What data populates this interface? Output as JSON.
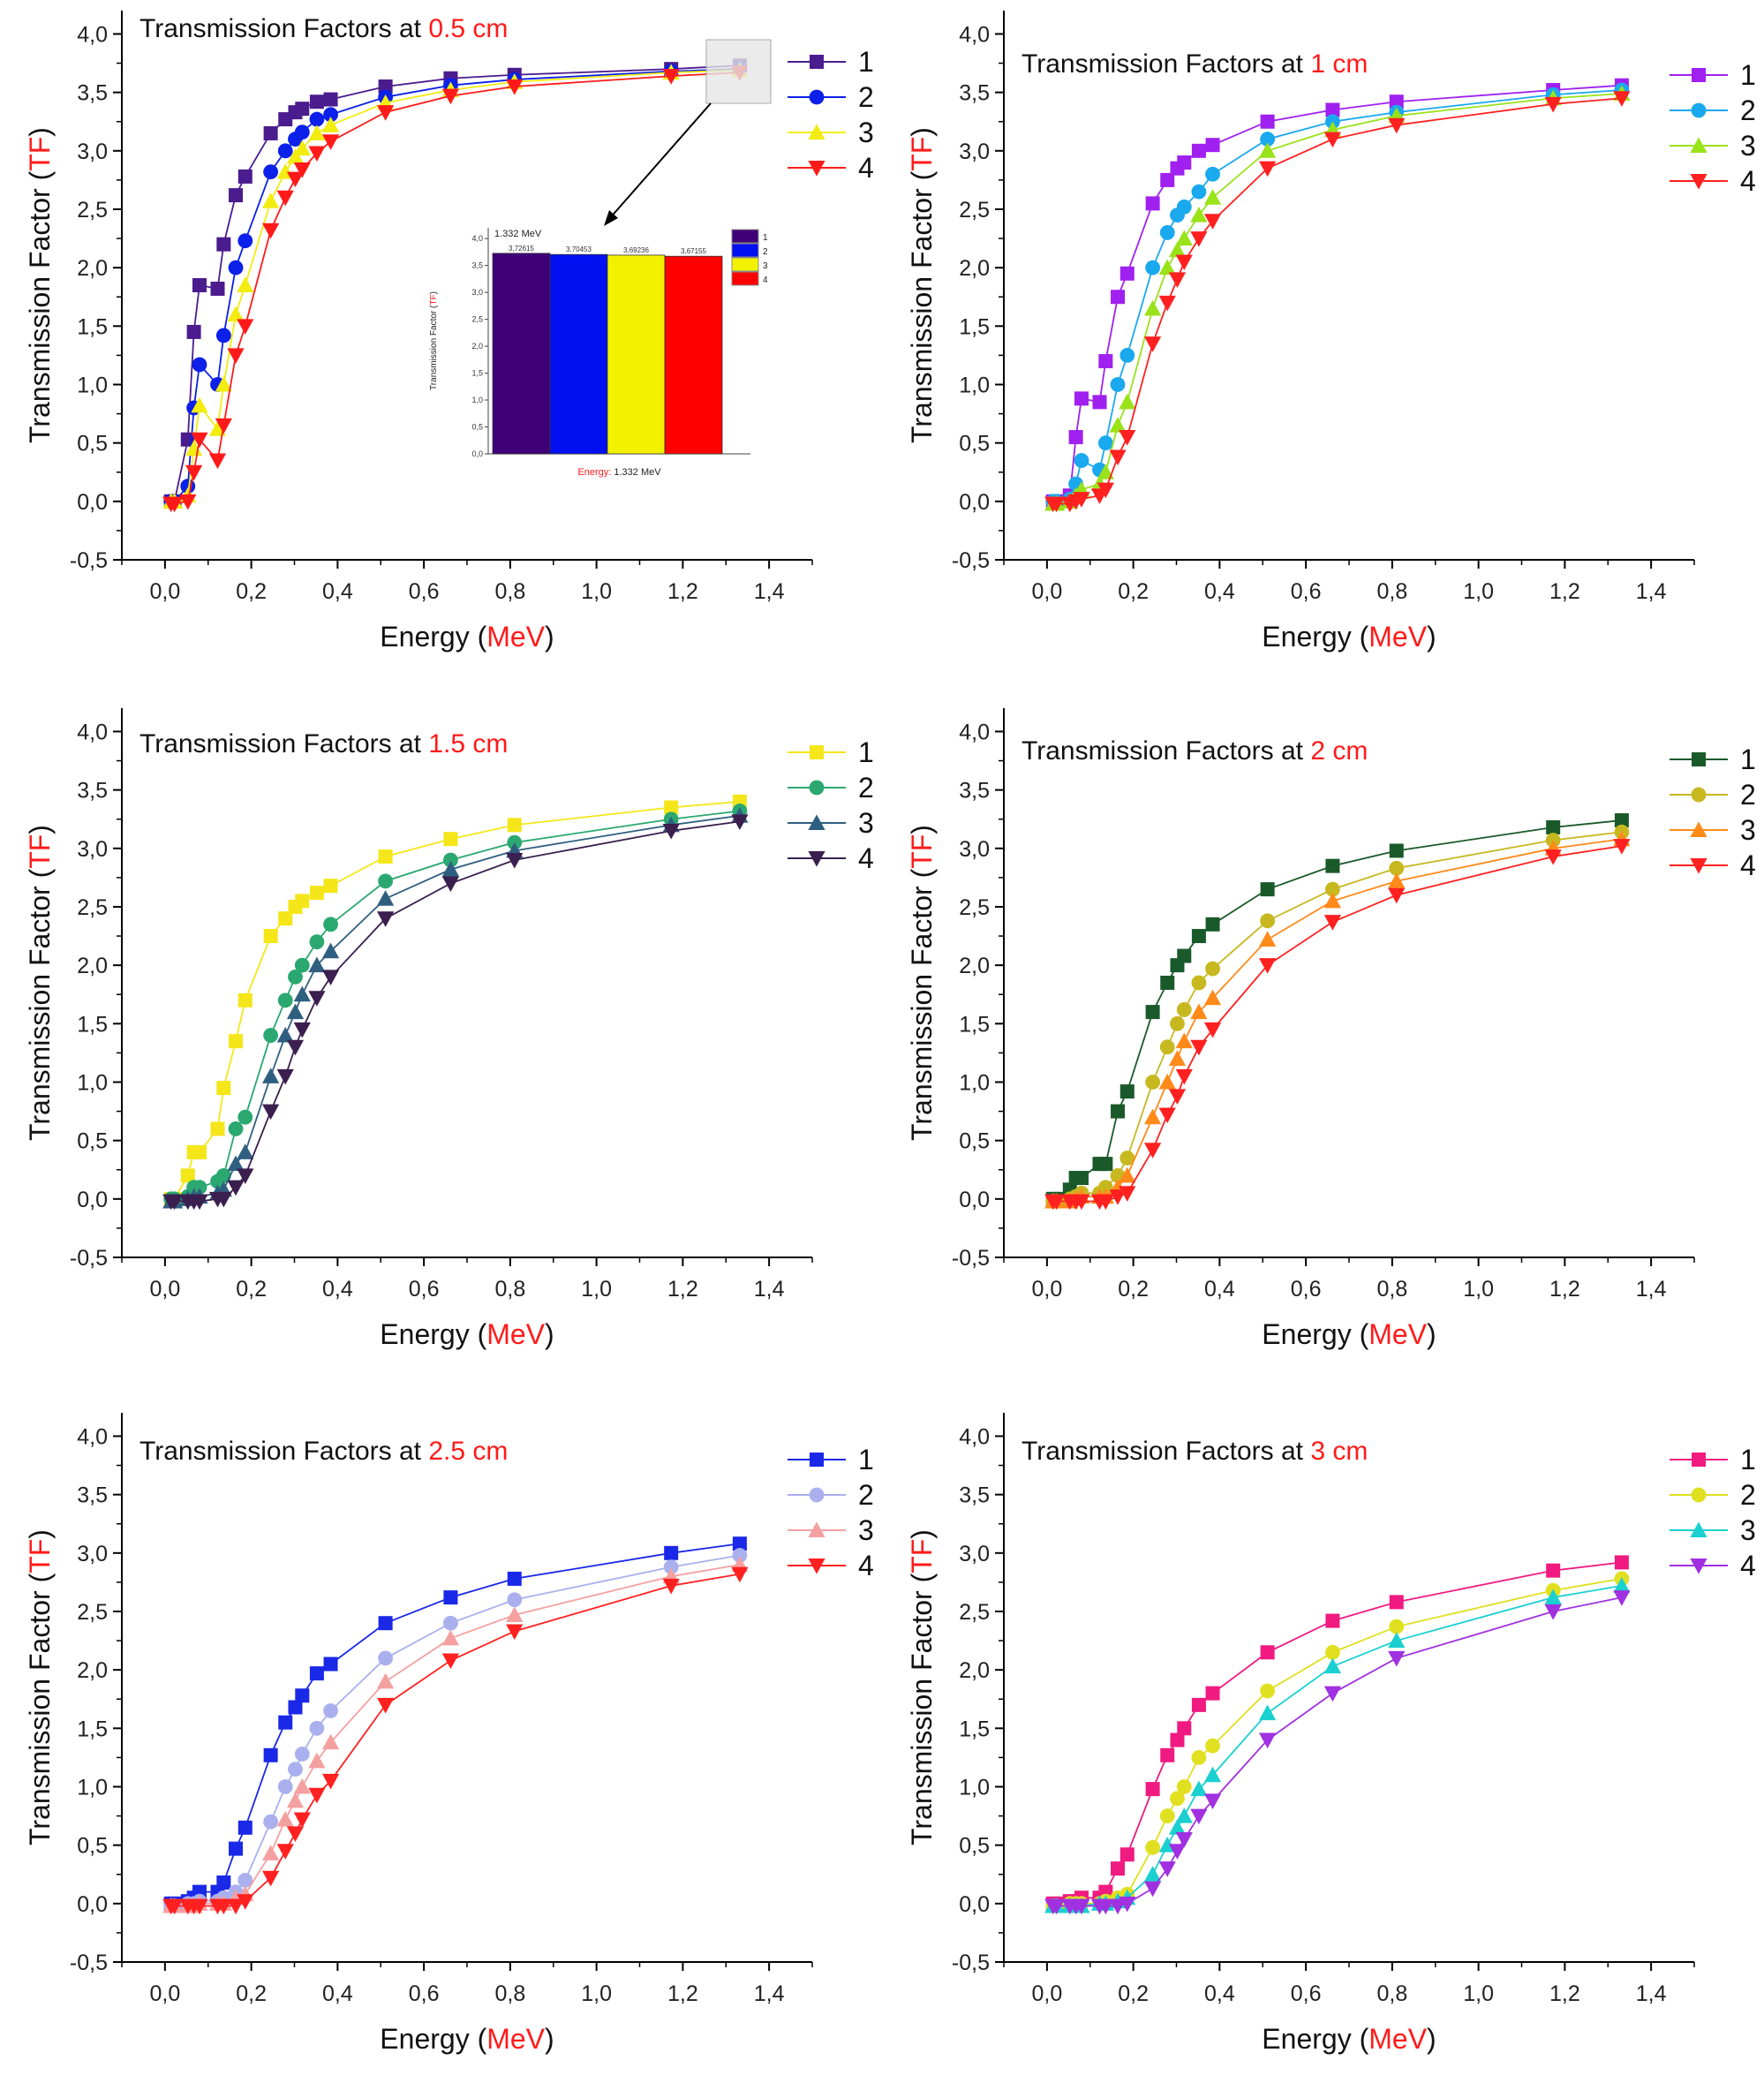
{
  "chart_data": [
    {
      "type": "line",
      "title_prefix": "Transmission Factors at ",
      "title_highlight": "0.5 cm",
      "colors": [
        "#4b1c8e",
        "#0b20e8",
        "#f2ec10",
        "#ff1a1a"
      ],
      "markers": [
        "square",
        "circle",
        "triangle-up",
        "triangle-down"
      ],
      "series": [
        {
          "name": "1",
          "values": [
            0,
            0,
            0.53,
            1.45,
            1.85,
            1.82,
            2.2,
            2.62,
            2.78,
            3.15,
            3.27,
            3.33,
            3.36,
            3.42,
            3.44,
            3.55,
            3.62,
            3.65,
            3.7,
            3.73
          ]
        },
        {
          "name": "2",
          "values": [
            0,
            0,
            0.13,
            0.8,
            1.17,
            1.0,
            1.42,
            2.0,
            2.23,
            2.82,
            3.0,
            3.1,
            3.16,
            3.27,
            3.31,
            3.46,
            3.56,
            3.61,
            3.68,
            3.7
          ]
        },
        {
          "name": "3",
          "values": [
            0,
            0,
            0.05,
            0.45,
            0.82,
            0.62,
            1.0,
            1.6,
            1.85,
            2.57,
            2.82,
            2.95,
            3.02,
            3.15,
            3.22,
            3.41,
            3.52,
            3.59,
            3.67,
            3.69
          ]
        },
        {
          "name": "4",
          "values": [
            -0.02,
            -0.02,
            0,
            0.25,
            0.53,
            0.35,
            0.65,
            1.25,
            1.5,
            2.32,
            2.6,
            2.76,
            2.84,
            2.98,
            3.08,
            3.33,
            3.47,
            3.55,
            3.64,
            3.67
          ]
        }
      ],
      "inset": {
        "type": "bar",
        "title": "1.332 MeV",
        "categories": [
          "1",
          "2",
          "3",
          "4"
        ],
        "values": [
          3.72615,
          3.70453,
          3.69236,
          3.67155
        ],
        "labels": [
          "3,72615",
          "3,70453",
          "3,69236",
          "3,67155"
        ],
        "colors": [
          "#3f0077",
          "#0010f0",
          "#f2f200",
          "#ff0000"
        ],
        "ylabel_prefix": "Transmission Factor (",
        "ylabel_highlight": "TF",
        "ylabel_suffix": ")",
        "xlabel_prefix": "Energy:",
        "xlabel_suffix": " 1.332 MeV",
        "yticks": [
          "0,0",
          "0,5",
          "1,0",
          "1,5",
          "2,0",
          "2,5",
          "3,0",
          "3,5",
          "4,0"
        ],
        "ylim": [
          0,
          4.2
        ]
      }
    },
    {
      "type": "line",
      "title_prefix": "Transmission Factors at ",
      "title_highlight": "1 cm",
      "colors": [
        "#a020f0",
        "#1aa8ee",
        "#9ae21a",
        "#ff2020"
      ],
      "markers": [
        "square",
        "circle",
        "triangle-up",
        "triangle-down"
      ],
      "series": [
        {
          "name": "1",
          "values": [
            0,
            0,
            0.05,
            0.55,
            0.88,
            0.85,
            1.2,
            1.75,
            1.95,
            2.55,
            2.75,
            2.85,
            2.9,
            3.0,
            3.05,
            3.25,
            3.35,
            3.42,
            3.52,
            3.56
          ]
        },
        {
          "name": "2",
          "values": [
            0,
            0,
            0.02,
            0.15,
            0.35,
            0.27,
            0.5,
            1.0,
            1.25,
            2.0,
            2.3,
            2.45,
            2.52,
            2.65,
            2.8,
            3.1,
            3.25,
            3.33,
            3.48,
            3.52
          ]
        },
        {
          "name": "3",
          "values": [
            -0.02,
            -0.02,
            0,
            0.05,
            0.1,
            0.15,
            0.25,
            0.65,
            0.85,
            1.65,
            2.0,
            2.15,
            2.25,
            2.45,
            2.6,
            3.0,
            3.18,
            3.3,
            3.45,
            3.49
          ]
        },
        {
          "name": "4",
          "values": [
            -0.02,
            -0.02,
            -0.02,
            0,
            0.02,
            0.05,
            0.1,
            0.38,
            0.55,
            1.35,
            1.7,
            1.9,
            2.05,
            2.25,
            2.4,
            2.85,
            3.1,
            3.22,
            3.4,
            3.45
          ]
        }
      ]
    },
    {
      "type": "line",
      "title_prefix": "Transmission Factors at ",
      "title_highlight": "1.5 cm",
      "colors": [
        "#f5e61a",
        "#2aa870",
        "#2f5f80",
        "#3a1f4f"
      ],
      "markers": [
        "square",
        "circle",
        "triangle-up",
        "triangle-down"
      ],
      "series": [
        {
          "name": "1",
          "values": [
            0,
            0,
            0.2,
            0.4,
            0.4,
            0.6,
            0.95,
            1.35,
            1.7,
            2.25,
            2.4,
            2.5,
            2.55,
            2.62,
            2.68,
            2.93,
            3.08,
            3.2,
            3.35,
            3.4
          ]
        },
        {
          "name": "2",
          "values": [
            0,
            0,
            0.02,
            0.1,
            0.1,
            0.15,
            0.2,
            0.6,
            0.7,
            1.4,
            1.7,
            1.9,
            2.0,
            2.2,
            2.35,
            2.72,
            2.9,
            3.05,
            3.25,
            3.32
          ]
        },
        {
          "name": "3",
          "values": [
            -0.02,
            -0.02,
            0,
            0.02,
            0.02,
            0.05,
            0.08,
            0.3,
            0.4,
            1.05,
            1.4,
            1.6,
            1.75,
            2.0,
            2.12,
            2.57,
            2.82,
            2.98,
            3.2,
            3.28
          ]
        },
        {
          "name": "4",
          "values": [
            -0.02,
            -0.02,
            -0.02,
            -0.02,
            -0.02,
            0,
            0,
            0.1,
            0.2,
            0.75,
            1.05,
            1.3,
            1.45,
            1.72,
            1.9,
            2.4,
            2.7,
            2.9,
            3.15,
            3.23
          ]
        }
      ]
    },
    {
      "type": "line",
      "title_prefix": "Transmission Factors at ",
      "title_highlight": "2 cm",
      "colors": [
        "#1a5a2a",
        "#c8b820",
        "#ff8a1a",
        "#ff2020"
      ],
      "markers": [
        "square",
        "circle",
        "triangle-up",
        "triangle-down"
      ],
      "series": [
        {
          "name": "1",
          "values": [
            0,
            0,
            0.08,
            0.18,
            0.18,
            0.3,
            0.3,
            0.75,
            0.92,
            1.6,
            1.85,
            2.0,
            2.08,
            2.25,
            2.35,
            2.65,
            2.85,
            2.98,
            3.18,
            3.24
          ]
        },
        {
          "name": "2",
          "values": [
            -0.02,
            -0.02,
            0,
            0.02,
            0.05,
            0.05,
            0.1,
            0.2,
            0.35,
            1.0,
            1.3,
            1.5,
            1.62,
            1.85,
            1.97,
            2.38,
            2.65,
            2.83,
            3.07,
            3.14
          ]
        },
        {
          "name": "3",
          "values": [
            -0.02,
            -0.02,
            -0.02,
            0,
            0.02,
            0.02,
            0.02,
            0.1,
            0.2,
            0.7,
            1.0,
            1.2,
            1.35,
            1.6,
            1.72,
            2.22,
            2.55,
            2.72,
            3.0,
            3.08
          ]
        },
        {
          "name": "4",
          "values": [
            -0.02,
            -0.02,
            -0.02,
            -0.02,
            -0.02,
            -0.02,
            -0.02,
            0.02,
            0.05,
            0.42,
            0.72,
            0.88,
            1.05,
            1.3,
            1.45,
            2.0,
            2.37,
            2.6,
            2.93,
            3.02
          ]
        }
      ]
    },
    {
      "type": "line",
      "title_prefix": "Transmission Factors at ",
      "title_highlight": "2.5 cm",
      "colors": [
        "#1a28e8",
        "#aab0ee",
        "#f5a0a0",
        "#ff2020"
      ],
      "markers": [
        "square",
        "circle",
        "triangle-up",
        "triangle-down"
      ],
      "series": [
        {
          "name": "1",
          "values": [
            0,
            0,
            0.02,
            0.05,
            0.1,
            0.1,
            0.18,
            0.47,
            0.65,
            1.27,
            1.55,
            1.68,
            1.78,
            1.97,
            2.05,
            2.4,
            2.62,
            2.78,
            3.0,
            3.08
          ]
        },
        {
          "name": "2",
          "values": [
            -0.02,
            -0.02,
            0,
            0,
            0.02,
            0.02,
            0.05,
            0.1,
            0.2,
            0.7,
            1.0,
            1.15,
            1.28,
            1.5,
            1.65,
            2.1,
            2.4,
            2.6,
            2.88,
            2.98
          ]
        },
        {
          "name": "3",
          "values": [
            -0.02,
            -0.02,
            -0.02,
            -0.02,
            0,
            0,
            0,
            0.05,
            0.08,
            0.43,
            0.72,
            0.88,
            1.0,
            1.22,
            1.38,
            1.9,
            2.27,
            2.47,
            2.8,
            2.9
          ]
        },
        {
          "name": "4",
          "values": [
            -0.02,
            -0.02,
            -0.02,
            -0.02,
            -0.02,
            -0.02,
            -0.02,
            -0.02,
            0.02,
            0.22,
            0.45,
            0.6,
            0.72,
            0.93,
            1.05,
            1.7,
            2.08,
            2.33,
            2.72,
            2.82
          ]
        }
      ]
    },
    {
      "type": "line",
      "title_prefix": "Transmission Factors at ",
      "title_highlight": "3 cm",
      "colors": [
        "#f01a80",
        "#e0e020",
        "#1ad0d0",
        "#a030e0"
      ],
      "markers": [
        "square",
        "circle",
        "triangle-up",
        "triangle-down"
      ],
      "series": [
        {
          "name": "1",
          "values": [
            0,
            0,
            0.02,
            0.02,
            0.05,
            0.05,
            0.1,
            0.3,
            0.42,
            0.98,
            1.27,
            1.4,
            1.5,
            1.7,
            1.8,
            2.15,
            2.42,
            2.58,
            2.85,
            2.92
          ]
        },
        {
          "name": "2",
          "values": [
            -0.02,
            -0.02,
            0,
            0,
            0,
            0,
            0.02,
            0.05,
            0.08,
            0.48,
            0.75,
            0.9,
            1.0,
            1.25,
            1.35,
            1.82,
            2.15,
            2.37,
            2.68,
            2.78
          ]
        },
        {
          "name": "3",
          "values": [
            -0.02,
            -0.02,
            -0.02,
            -0.02,
            -0.02,
            0,
            0,
            0.02,
            0.05,
            0.25,
            0.5,
            0.65,
            0.75,
            0.98,
            1.1,
            1.63,
            2.03,
            2.25,
            2.62,
            2.72
          ]
        },
        {
          "name": "4",
          "values": [
            -0.02,
            -0.02,
            -0.02,
            -0.02,
            -0.02,
            -0.02,
            -0.02,
            -0.02,
            0,
            0.13,
            0.3,
            0.45,
            0.55,
            0.75,
            0.88,
            1.4,
            1.8,
            2.1,
            2.5,
            2.62
          ]
        }
      ]
    }
  ],
  "shared": {
    "x": [
      0.014,
      0.022,
      0.053,
      0.067,
      0.08,
      0.122,
      0.136,
      0.164,
      0.186,
      0.245,
      0.279,
      0.302,
      0.318,
      0.352,
      0.384,
      0.511,
      0.662,
      0.81,
      1.173,
      1.332
    ],
    "xlim": [
      -0.1,
      1.5
    ],
    "ylim": [
      -0.5,
      4.2
    ],
    "xticks": [
      0,
      0.2,
      0.4,
      0.6,
      0.8,
      1.0,
      1.2,
      1.4
    ],
    "xtick_labels": [
      "0,0",
      "0,2",
      "0,4",
      "0,6",
      "0,8",
      "1,0",
      "1,2",
      "1,4"
    ],
    "yticks": [
      -0.5,
      0,
      0.5,
      1,
      1.5,
      2,
      2.5,
      3,
      3.5,
      4
    ],
    "ytick_labels": [
      "-0,5",
      "0,0",
      "0,5",
      "1,0",
      "1,5",
      "2,0",
      "2,5",
      "3,0",
      "3,5",
      "4,0"
    ],
    "xlabel_prefix": "Energy (",
    "xlabel_highlight": "MeV",
    "xlabel_suffix": ")",
    "ylabel_prefix": "Transmission Factor (",
    "ylabel_highlight": "TF",
    "ylabel_suffix": ")",
    "highlight_color": "#ff1a1a",
    "grid": false,
    "legend": "right"
  }
}
